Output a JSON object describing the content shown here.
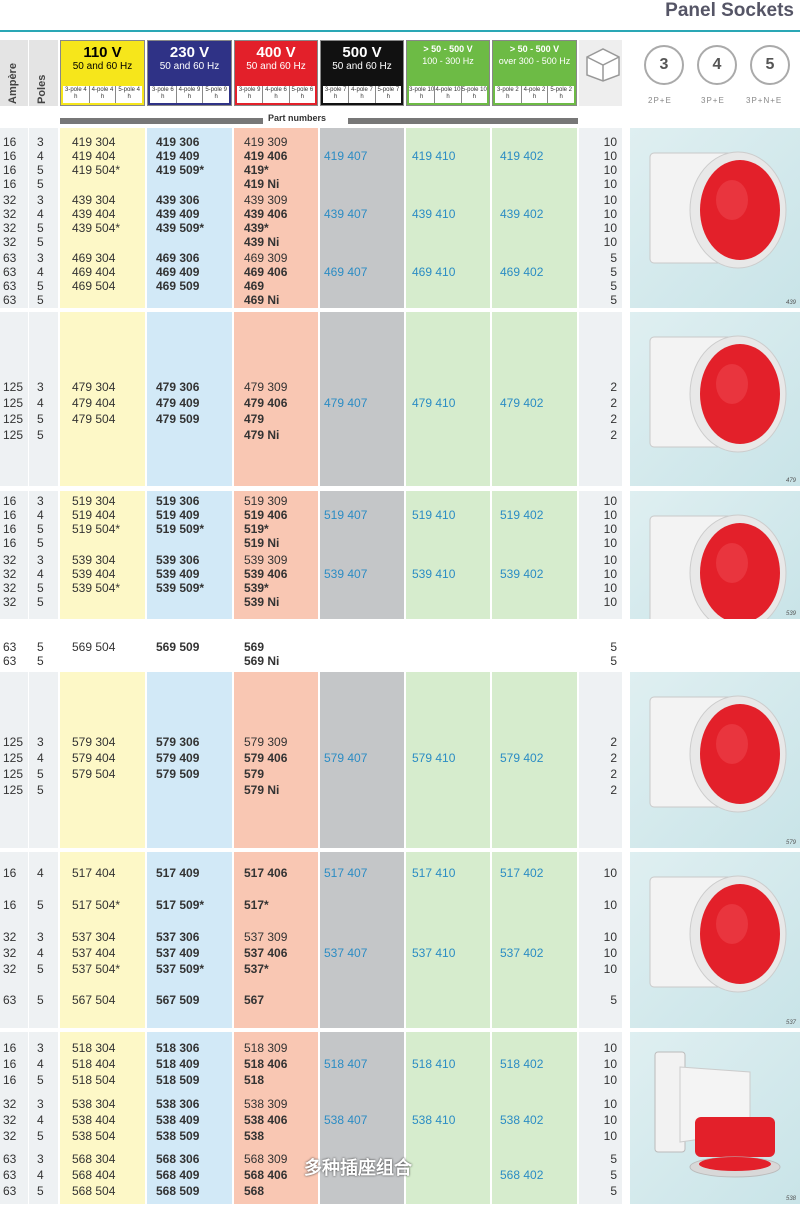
{
  "page_title": "Panel Sockets",
  "headers": {
    "ampere": "Ampère",
    "poles": "Poles",
    "part_numbers": "Part numbers",
    "voltages": [
      {
        "v": "110 V",
        "f": "50 and 60 Hz",
        "poles": [
          "3-pole 4 h",
          "4-pole 4 h",
          "5-pole 4 h"
        ],
        "color": "#f6e61b",
        "text": "#000000"
      },
      {
        "v": "230 V",
        "f": "50 and 60 Hz",
        "poles": [
          "3-pole 6 h",
          "4-pole 9 h",
          "5-pole 9 h"
        ],
        "color": "#2f3286",
        "text": "#ffffff"
      },
      {
        "v": "400 V",
        "f": "50 and 60 Hz",
        "poles": [
          "3-pole 9 h",
          "4-pole 6 h",
          "5-pole 6 h"
        ],
        "color": "#e3202a",
        "text": "#ffffff"
      },
      {
        "v": "500 V",
        "f": "50 and 60 Hz",
        "poles": [
          "3-pole 7 h",
          "4-pole 7 h",
          "5-pole 7 h"
        ],
        "color": "#111111",
        "text": "#ffffff"
      },
      {
        "v": "> 50 - 500 V",
        "f": "100 - 300 Hz",
        "poles": [
          "3-pole 10 h",
          "4-pole 10 h",
          "5-pole 10 h"
        ],
        "color": "#6dbb45",
        "text": "#ffffff"
      },
      {
        "v": "> 50 - 500 V",
        "f": "over 300 - 500 Hz",
        "poles": [
          "3-pole 2 h",
          "4-pole 2 h",
          "5-pole 2 h"
        ],
        "color": "#6dbb45",
        "text": "#ffffff"
      }
    ],
    "pin_icons": [
      {
        "n": "3",
        "label": "2P+E"
      },
      {
        "n": "4",
        "label": "3P+E"
      },
      {
        "n": "5",
        "label": "3P+N+E"
      }
    ]
  },
  "blocks": [
    {
      "image_code": "439",
      "rows": [
        {
          "amp": "16",
          "pol": "3",
          "c110": "419 304",
          "c230": "419 306",
          "c400": "419 309",
          "c500": "",
          "cg1": "",
          "cg2": "",
          "qty": "10"
        },
        {
          "amp": "16",
          "pol": "4",
          "c110": "419 404",
          "c230": "419 409",
          "c400": "419 406",
          "c500": "419 407",
          "cg1": "419 410",
          "cg2": "419 402",
          "qty": "10"
        },
        {
          "amp": "16",
          "pol": "5",
          "c110": "419 504*",
          "c230": "419 509*",
          "c400": "419*",
          "c500": "",
          "cg1": "",
          "cg2": "",
          "qty": "10"
        },
        {
          "amp": "16",
          "pol": "5",
          "c110": "",
          "c230": "",
          "c400": "419 Ni",
          "c500": "",
          "cg1": "",
          "cg2": "",
          "qty": "10"
        },
        {
          "amp": "32",
          "pol": "3",
          "c110": "439 304",
          "c230": "439 306",
          "c400": "439 309",
          "c500": "",
          "cg1": "",
          "cg2": "",
          "qty": "10"
        },
        {
          "amp": "32",
          "pol": "4",
          "c110": "439 404",
          "c230": "439 409",
          "c400": "439 406",
          "c500": "439 407",
          "cg1": "439 410",
          "cg2": "439 402",
          "qty": "10"
        },
        {
          "amp": "32",
          "pol": "5",
          "c110": "439 504*",
          "c230": "439 509*",
          "c400": "439*",
          "c500": "",
          "cg1": "",
          "cg2": "",
          "qty": "10"
        },
        {
          "amp": "32",
          "pol": "5",
          "c110": "",
          "c230": "",
          "c400": "439 Ni",
          "c500": "",
          "cg1": "",
          "cg2": "",
          "qty": "10"
        },
        {
          "amp": "63",
          "pol": "3",
          "c110": "469 304",
          "c230": "469 306",
          "c400": "469 309",
          "c500": "",
          "cg1": "",
          "cg2": "",
          "qty": "5"
        },
        {
          "amp": "63",
          "pol": "4",
          "c110": "469 404",
          "c230": "469 409",
          "c400": "469 406",
          "c500": "469 407",
          "cg1": "469 410",
          "cg2": "469 402",
          "qty": "5"
        },
        {
          "amp": "63",
          "pol": "5",
          "c110": "469 504",
          "c230": "469 509",
          "c400": "469",
          "c500": "",
          "cg1": "",
          "cg2": "",
          "qty": "5"
        },
        {
          "amp": "63",
          "pol": "5",
          "c110": "",
          "c230": "",
          "c400": "469 Ni",
          "c500": "",
          "cg1": "",
          "cg2": "",
          "qty": "5"
        }
      ]
    },
    {
      "image_code": "479",
      "rows": [
        {
          "amp": "125",
          "pol": "3",
          "c110": "479 304",
          "c230": "479 306",
          "c400": "479 309",
          "c500": "",
          "cg1": "",
          "cg2": "",
          "qty": "2"
        },
        {
          "amp": "125",
          "pol": "4",
          "c110": "479 404",
          "c230": "479 409",
          "c400": "479 406",
          "c500": "479 407",
          "cg1": "479 410",
          "cg2": "479 402",
          "qty": "2"
        },
        {
          "amp": "125",
          "pol": "5",
          "c110": "479 504",
          "c230": "479 509",
          "c400": "479",
          "c500": "",
          "cg1": "",
          "cg2": "",
          "qty": "2"
        },
        {
          "amp": "125",
          "pol": "5",
          "c110": "",
          "c230": "",
          "c400": "479 Ni",
          "c500": "",
          "cg1": "",
          "cg2": "",
          "qty": "2"
        }
      ]
    },
    {
      "image_code": "539",
      "rows": [
        {
          "amp": "16",
          "pol": "3",
          "c110": "519 304",
          "c230": "519 306",
          "c400": "519 309",
          "c500": "",
          "cg1": "",
          "cg2": "",
          "qty": "10"
        },
        {
          "amp": "16",
          "pol": "4",
          "c110": "519 404",
          "c230": "519 409",
          "c400": "519 406",
          "c500": "519 407",
          "cg1": "519 410",
          "cg2": "519 402",
          "qty": "10"
        },
        {
          "amp": "16",
          "pol": "5",
          "c110": "519 504*",
          "c230": "519 509*",
          "c400": "519*",
          "c500": "",
          "cg1": "",
          "cg2": "",
          "qty": "10"
        },
        {
          "amp": "16",
          "pol": "5",
          "c110": "",
          "c230": "",
          "c400": "519 Ni",
          "c500": "",
          "cg1": "",
          "cg2": "",
          "qty": "10"
        },
        {
          "amp": "32",
          "pol": "3",
          "c110": "539 304",
          "c230": "539 306",
          "c400": "539 309",
          "c500": "",
          "cg1": "",
          "cg2": "",
          "qty": "10"
        },
        {
          "amp": "32",
          "pol": "4",
          "c110": "539 404",
          "c230": "539 409",
          "c400": "539 406",
          "c500": "539 407",
          "cg1": "539 410",
          "cg2": "539 402",
          "qty": "10"
        },
        {
          "amp": "32",
          "pol": "5",
          "c110": "539 504*",
          "c230": "539 509*",
          "c400": "539*",
          "c500": "",
          "cg1": "",
          "cg2": "",
          "qty": "10"
        },
        {
          "amp": "32",
          "pol": "5",
          "c110": "",
          "c230": "",
          "c400": "539 Ni",
          "c500": "",
          "cg1": "",
          "cg2": "",
          "qty": "10"
        },
        {
          "amp": "63",
          "pol": "5",
          "c110": "569 504",
          "c230": "569 509",
          "c400": "569",
          "c500": "",
          "cg1": "",
          "cg2": "",
          "qty": "5"
        },
        {
          "amp": "63",
          "pol": "5",
          "c110": "",
          "c230": "",
          "c400": "569 Ni",
          "c500": "",
          "cg1": "",
          "cg2": "",
          "qty": "5"
        }
      ]
    },
    {
      "image_code": "579",
      "rows": [
        {
          "amp": "125",
          "pol": "3",
          "c110": "579 304",
          "c230": "579 306",
          "c400": "579 309",
          "c500": "",
          "cg1": "",
          "cg2": "",
          "qty": "2"
        },
        {
          "amp": "125",
          "pol": "4",
          "c110": "579 404",
          "c230": "579 409",
          "c400": "579 406",
          "c500": "579 407",
          "cg1": "579 410",
          "cg2": "579 402",
          "qty": "2"
        },
        {
          "amp": "125",
          "pol": "5",
          "c110": "579 504",
          "c230": "579 509",
          "c400": "579",
          "c500": "",
          "cg1": "",
          "cg2": "",
          "qty": "2"
        },
        {
          "amp": "125",
          "pol": "5",
          "c110": "",
          "c230": "",
          "c400": "579 Ni",
          "c500": "",
          "cg1": "",
          "cg2": "",
          "qty": "2"
        }
      ]
    },
    {
      "image_code": "537",
      "rows": [
        {
          "amp": "16",
          "pol": "4",
          "c110": "517 404",
          "c230": "517 409",
          "c400": "517 406",
          "c500": "517 407",
          "cg1": "517 410",
          "cg2": "517 402",
          "qty": "10"
        },
        {
          "amp": "16",
          "pol": "5",
          "c110": "517 504*",
          "c230": "517 509*",
          "c400": "517*",
          "c500": "",
          "cg1": "",
          "cg2": "",
          "qty": "10"
        },
        {
          "amp": "32",
          "pol": "3",
          "c110": "537 304",
          "c230": "537 306",
          "c400": "537 309",
          "c500": "",
          "cg1": "",
          "cg2": "",
          "qty": "10"
        },
        {
          "amp": "32",
          "pol": "4",
          "c110": "537 404",
          "c230": "537 409",
          "c400": "537 406",
          "c500": "537 407",
          "cg1": "537 410",
          "cg2": "537 402",
          "qty": "10"
        },
        {
          "amp": "32",
          "pol": "5",
          "c110": "537 504*",
          "c230": "537 509*",
          "c400": "537*",
          "c500": "",
          "cg1": "",
          "cg2": "",
          "qty": "10"
        },
        {
          "amp": "63",
          "pol": "5",
          "c110": "567 504",
          "c230": "567 509",
          "c400": "567",
          "c500": "",
          "cg1": "",
          "cg2": "",
          "qty": "5"
        }
      ]
    },
    {
      "image_code": "538",
      "rows": [
        {
          "amp": "16",
          "pol": "3",
          "c110": "518 304",
          "c230": "518 306",
          "c400": "518 309",
          "c500": "",
          "cg1": "",
          "cg2": "",
          "qty": "10"
        },
        {
          "amp": "16",
          "pol": "4",
          "c110": "518 404",
          "c230": "518 409",
          "c400": "518 406",
          "c500": "518 407",
          "cg1": "518 410",
          "cg2": "518 402",
          "qty": "10"
        },
        {
          "amp": "16",
          "pol": "5",
          "c110": "518 504",
          "c230": "518 509",
          "c400": "518",
          "c500": "",
          "cg1": "",
          "cg2": "",
          "qty": "10"
        },
        {
          "amp": "32",
          "pol": "3",
          "c110": "538 304",
          "c230": "538 306",
          "c400": "538 309",
          "c500": "",
          "cg1": "",
          "cg2": "",
          "qty": "10"
        },
        {
          "amp": "32",
          "pol": "4",
          "c110": "538 404",
          "c230": "538 409",
          "c400": "538 406",
          "c500": "538 407",
          "cg1": "538 410",
          "cg2": "538 402",
          "qty": "10"
        },
        {
          "amp": "32",
          "pol": "5",
          "c110": "538 504",
          "c230": "538 509",
          "c400": "538",
          "c500": "",
          "cg1": "",
          "cg2": "",
          "qty": "10"
        },
        {
          "amp": "63",
          "pol": "3",
          "c110": "568 304",
          "c230": "568 306",
          "c400": "568 309",
          "c500": "",
          "cg1": "",
          "cg2": "",
          "qty": "5"
        },
        {
          "amp": "63",
          "pol": "4",
          "c110": "568 404",
          "c230": "568 409",
          "c400": "568 406",
          "c500": "",
          "cg1": "",
          "cg2": "568 402",
          "qty": "5"
        },
        {
          "amp": "63",
          "pol": "5",
          "c110": "568 504",
          "c230": "568 509",
          "c400": "568",
          "c500": "",
          "cg1": "",
          "cg2": "",
          "qty": "5"
        }
      ]
    }
  ],
  "watermark": "多种插座组合",
  "colors": {
    "accent_rule": "#2aa7b5",
    "link_blue": "#2b8cc4",
    "socket_red": "#e3202a"
  }
}
